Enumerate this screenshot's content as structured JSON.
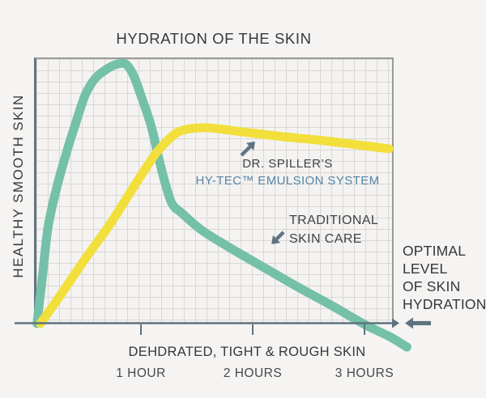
{
  "chart_data": {
    "type": "line",
    "title": "HYDRATION OF THE SKIN",
    "xlabel": "DEHDRATED, TIGHT & ROUGH SKIN",
    "ylabel": "HEALTHY SMOOTH SKIN",
    "x_unit": "hours",
    "x_ticks": [
      {
        "value": 1,
        "label": "1 HOUR"
      },
      {
        "value": 2,
        "label": "2 HOURS"
      },
      {
        "value": 3,
        "label": "3 HOURS"
      }
    ],
    "y_axis_note": "unlabeled relative hydration scale 0-100; baseline = optimal level of skin hydration origin",
    "grid": true,
    "legend_position": "inline-annotations",
    "series": [
      {
        "name": "TRADITIONAL SKIN CARE",
        "color": "#74c0a8",
        "x_hours": [
          0.07,
          0.12,
          0.17,
          0.25,
          0.32,
          0.41,
          0.5,
          0.59,
          0.7,
          0.8,
          0.87,
          0.94,
          1.01,
          1.09,
          1.16,
          1.22,
          1.28,
          1.37,
          1.55,
          1.84,
          2.13,
          2.42,
          2.71,
          3.0,
          3.22,
          3.38
        ],
        "values": [
          0,
          18.2,
          36.4,
          51.5,
          62.1,
          74.2,
          85.5,
          91.8,
          95.5,
          97.3,
          97.0,
          92.4,
          84.2,
          74.2,
          61.8,
          52.1,
          44.8,
          41.2,
          34.8,
          27.3,
          20.3,
          13.3,
          6.7,
          -0.3,
          -4.8,
          -8.8
        ]
      },
      {
        "name": "DR. SPILLER’S HY-TEC™ EMULSION SYSTEM",
        "color": "#f2df3b",
        "x_hours": [
          0.1,
          0.28,
          0.5,
          0.72,
          0.94,
          1.12,
          1.23,
          1.32,
          1.44,
          1.62,
          1.91,
          2.28,
          2.64,
          2.93,
          3.22
        ],
        "values": [
          0,
          10.6,
          24.2,
          37.0,
          51.5,
          63.0,
          68.2,
          71.5,
          73.0,
          73.3,
          71.8,
          70.0,
          68.5,
          67.0,
          65.5
        ]
      }
    ]
  },
  "annotations": {
    "dr_spillers": {
      "line1": "DR. SPILLER’S",
      "line2": "HY-TEC™ EMULSION SYSTEM",
      "line2_color": "#5484a6",
      "arrow": "up-right"
    },
    "traditional": {
      "line1": "TRADITIONAL",
      "line2": "SKIN CARE",
      "arrow": "down-left"
    },
    "optimal": {
      "lines": [
        "OPTIMAL",
        "LEVEL",
        "OF SKIN",
        "HYDRATION"
      ],
      "arrow": "left"
    }
  },
  "colors": {
    "background": "#f5f4f2",
    "plot_background": "#f4f3f1",
    "grid": "#d9d8d5",
    "plot_border": "#9b9b99",
    "axis_and_arrows": "#5f7280",
    "text_dark": "#3a3c3e",
    "accent_blue": "#5484a6",
    "teal_curve": "#74c0a8",
    "yellow_curve": "#f2df3b"
  }
}
